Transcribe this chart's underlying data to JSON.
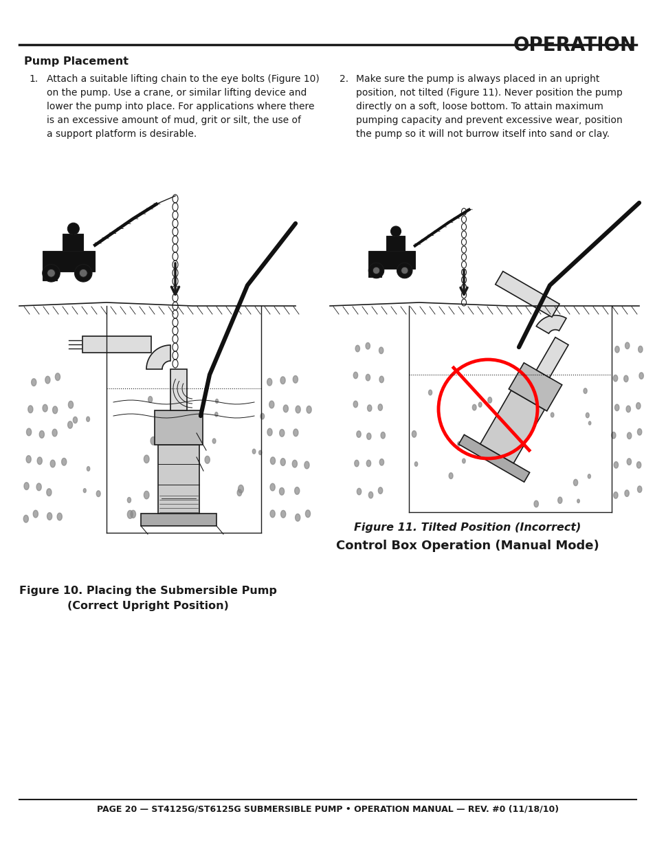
{
  "bg_color": "#ffffff",
  "header_title": "OPERATION",
  "text_color": "#1a1a1a",
  "section_title": "Pump Placement",
  "body1_num": "1.",
  "body1_text": "Attach a suitable lifting chain to the eye bolts (Figure 10)\non the pump. Use a crane, or similar lifting device and\nlower the pump into place. For applications where there\nis an excessive amount of mud, grit or silt, the use of\na support platform is desirable.",
  "body2_num": "2.",
  "body2_text": "Make sure the pump is always placed in an upright\nposition, not tilted (Figure 11). Never position the pump\ndirectly on a soft, loose bottom. To attain maximum\npumping capacity and prevent excessive wear, position\nthe pump so it will not burrow itself into sand or clay.",
  "fig10_cap1": "Figure 10. Placing the Submersible Pump",
  "fig10_cap2": "(Correct Upright Position)",
  "fig11_cap1": "Figure 11. Tilted Position (Incorrect)",
  "fig11_cap2": "Control Box Operation (Manual Mode)",
  "footer_text": "PAGE 20 — ST4125G/ST6125G SUBMERSIBLE PUMP • OPERATION MANUAL — REV. #0 (11/18/10)"
}
